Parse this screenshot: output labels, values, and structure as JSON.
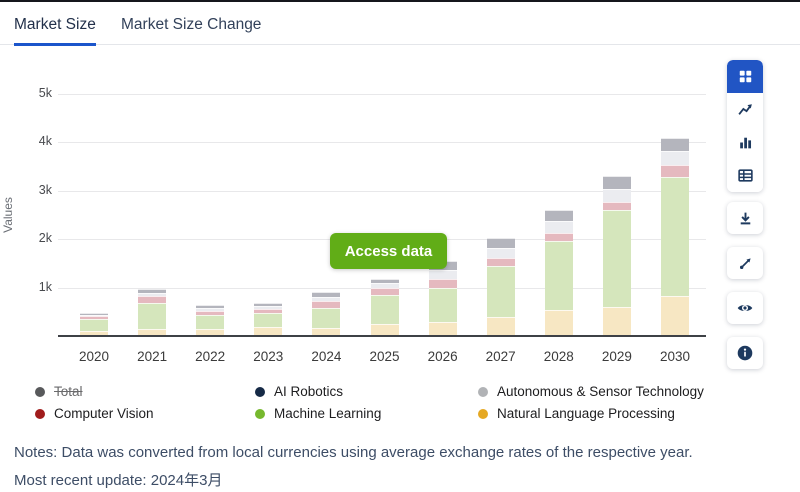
{
  "tabs": [
    {
      "label": "Market Size",
      "active": true
    },
    {
      "label": "Market Size Change",
      "active": false
    }
  ],
  "colors": {
    "accent_blue": "#2155c4",
    "tab_underline_blue": "#1b55cb",
    "access_button_green": "#61ad17"
  },
  "overlay": {
    "access_button_label": "Access data"
  },
  "chart_data": {
    "type": "bar",
    "stacked": true,
    "title": "",
    "xlabel": "",
    "ylabel": "Values",
    "y_ticks": [
      "1k",
      "2k",
      "3k",
      "4k",
      "5k"
    ],
    "ylim": [
      0,
      5000
    ],
    "grid": true,
    "legend_position": "bottom",
    "categories": [
      "2020",
      "2021",
      "2022",
      "2023",
      "2024",
      "2025",
      "2026",
      "2027",
      "2028",
      "2029",
      "2030"
    ],
    "series": [
      {
        "key": "nlp",
        "name": "Natural Language Processing",
        "bar_color": "#f7e7c3",
        "legend_color": "#e5a823",
        "values": [
          80,
          120,
          130,
          170,
          150,
          230,
          270,
          370,
          510,
          580,
          800
        ]
      },
      {
        "key": "ml",
        "name": "Machine Learning",
        "bar_color": "#d5e6bc",
        "legend_color": "#76b82e",
        "values": [
          245,
          540,
          290,
          290,
          410,
          600,
          710,
          1050,
          1430,
          2000,
          2470
        ]
      },
      {
        "key": "cv",
        "name": "Computer Vision",
        "bar_color": "#e5b9bf",
        "legend_color": "#a01c1c",
        "values": [
          60,
          140,
          80,
          80,
          140,
          140,
          170,
          170,
          170,
          170,
          240
        ]
      },
      {
        "key": "air",
        "name": "AI Robotics",
        "bar_color": "#ebecf0",
        "legend_color": "#162a46",
        "values": [
          25,
          70,
          60,
          60,
          90,
          100,
          200,
          200,
          240,
          270,
          300
        ]
      },
      {
        "key": "ast",
        "name": "Autonomous & Sensor Technology",
        "bar_color": "#b4b5bd",
        "legend_color": "#b1b3b6",
        "values": [
          40,
          90,
          60,
          60,
          100,
          100,
          170,
          220,
          240,
          260,
          270
        ]
      }
    ],
    "totals_estimated": [
      450,
      960,
      620,
      660,
      890,
      1170,
      1520,
      2010,
      2590,
      3280,
      4080
    ],
    "hidden_series": [
      "Total"
    ]
  },
  "legend": {
    "items": [
      {
        "label": "Total",
        "color": "#58595b",
        "disabled": true
      },
      {
        "label": "AI Robotics",
        "color": "#162a46",
        "disabled": false
      },
      {
        "label": "Autonomous & Sensor Technology",
        "color": "#b1b3b6",
        "disabled": false
      },
      {
        "label": "Computer Vision",
        "color": "#a01c1c",
        "disabled": false
      },
      {
        "label": "Machine Learning",
        "color": "#76b82e",
        "disabled": false
      },
      {
        "label": "Natural Language Processing",
        "color": "#e5a823",
        "disabled": false
      }
    ]
  },
  "toolbar": {
    "buttons": [
      "grid-view",
      "line-chart-view",
      "bar-chart-view",
      "table-view",
      "download",
      "expand",
      "visibility",
      "info"
    ],
    "active_button": "grid-view"
  },
  "notes": {
    "line1": "Notes: Data was converted from local currencies using average exchange rates of the respective year.",
    "line2": "Most recent update: 2024年3月"
  }
}
